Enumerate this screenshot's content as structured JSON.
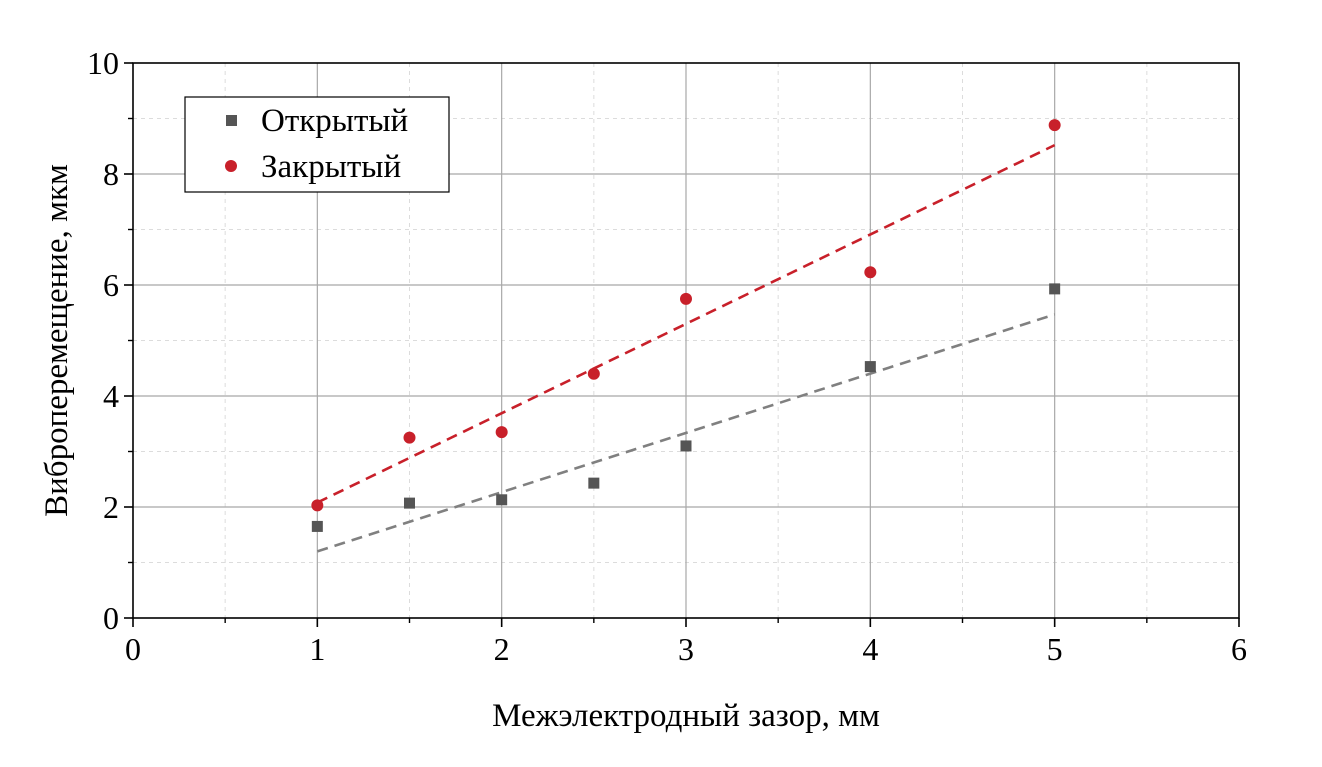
{
  "chart_data": {
    "type": "scatter",
    "title": "",
    "xlabel": "Межэлектродный зазор, мм",
    "ylabel": "Виброперемещение, мкм",
    "xlim": [
      0,
      6
    ],
    "ylim": [
      0,
      10
    ],
    "x_ticks": [
      "0",
      "1",
      "2",
      "3",
      "4",
      "5",
      "6"
    ],
    "y_ticks": [
      "0",
      "2",
      "4",
      "6",
      "8",
      "10"
    ],
    "grid": true,
    "legend_position": "top-left",
    "series": [
      {
        "name": "Открытый",
        "marker": "square",
        "color": "#555555",
        "trend_color": "#808080",
        "x": [
          1,
          1.5,
          2,
          2.5,
          3,
          4,
          5
        ],
        "y": [
          1.65,
          2.07,
          2.13,
          2.43,
          3.1,
          4.53,
          5.93
        ],
        "trend": {
          "x": [
            1,
            5
          ],
          "y": [
            1.2,
            5.47
          ]
        }
      },
      {
        "name": "Закрытый",
        "marker": "circle",
        "color": "#c8202a",
        "trend_color": "#c8202a",
        "x": [
          1,
          1.5,
          2,
          2.5,
          3,
          4,
          5
        ],
        "y": [
          2.03,
          3.25,
          3.35,
          4.4,
          5.75,
          6.23,
          8.88
        ],
        "trend": {
          "x": [
            1,
            5
          ],
          "y": [
            2.08,
            8.52
          ]
        }
      }
    ]
  }
}
